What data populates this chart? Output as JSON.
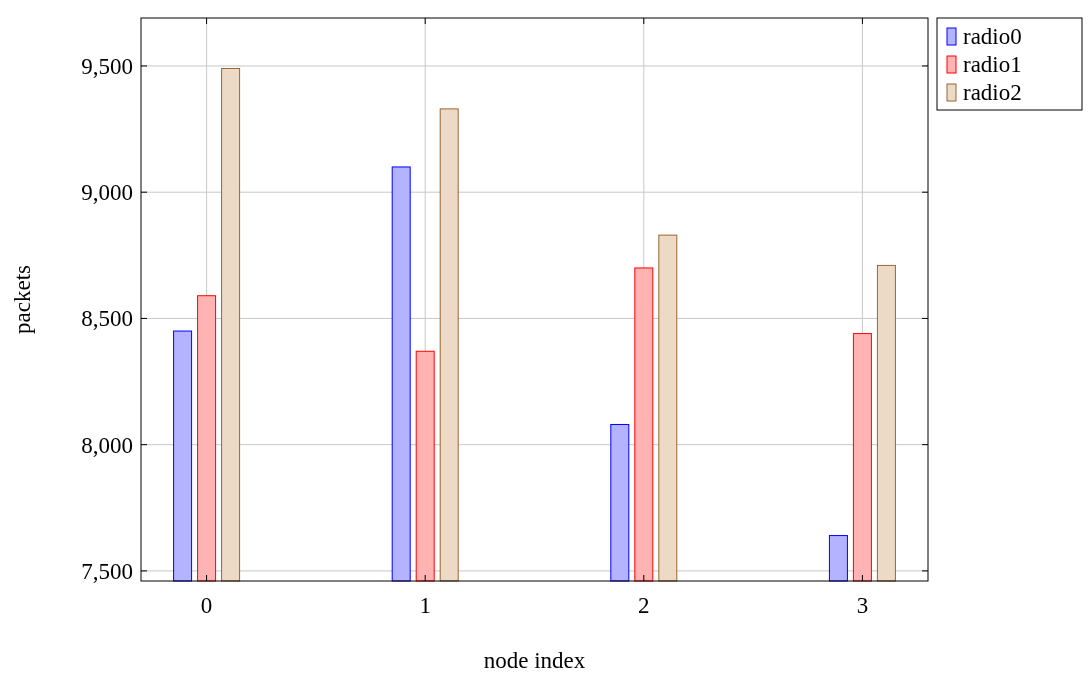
{
  "chart_data": {
    "type": "bar",
    "xlabel": "node index",
    "ylabel": "packets",
    "x": [
      0,
      1,
      2,
      3
    ],
    "xlim": [
      -0.3,
      3.3
    ],
    "xticks": [
      0,
      1,
      2,
      3
    ],
    "ylim": [
      7460,
      9690
    ],
    "yticks": [
      {
        "value": 7500,
        "label": "7,500"
      },
      {
        "value": 8000,
        "label": "8,000"
      },
      {
        "value": 8500,
        "label": "8,500"
      },
      {
        "value": 9000,
        "label": "9,000"
      },
      {
        "value": 9500,
        "label": "9,500"
      }
    ],
    "grid": true,
    "legend": "top right",
    "series": [
      {
        "name": "radio0",
        "color": "#b3b3ff",
        "values": [
          8450,
          9100,
          8080,
          7640
        ]
      },
      {
        "name": "radio1",
        "color": "#ffb3b3",
        "values": [
          8590,
          8370,
          8700,
          8440
        ]
      },
      {
        "name": "radio2",
        "color": "#ecd9c6",
        "values": [
          9490,
          9330,
          8830,
          8710
        ]
      }
    ]
  }
}
